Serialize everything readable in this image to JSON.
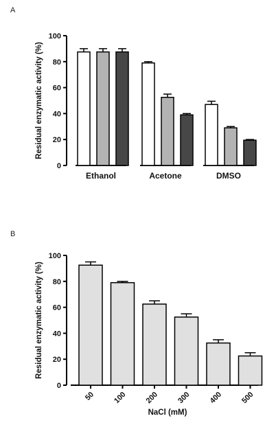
{
  "chart_data": [
    {
      "panel_label": "A",
      "type": "bar",
      "categories": [
        "Ethanol",
        "Acetone",
        "DMSO"
      ],
      "series": [
        {
          "values": [
            87.5,
            79,
            47
          ],
          "errors": [
            2.5,
            1,
            2.5
          ],
          "color": "#ffffff"
        },
        {
          "values": [
            87.5,
            52.5,
            29
          ],
          "errors": [
            2.5,
            2.5,
            1
          ],
          "color": "#b3b3b3"
        },
        {
          "values": [
            87.5,
            39,
            19.5
          ],
          "errors": [
            2.5,
            1,
            0.5
          ],
          "color": "#474747"
        }
      ],
      "ylabel": "Residual enzymatic activity (%)",
      "xlabel": "",
      "ylim": [
        0,
        100
      ],
      "yticks": [
        "0",
        "20",
        "40",
        "60",
        "80",
        "100"
      ],
      "grid": false
    },
    {
      "panel_label": "B",
      "type": "bar",
      "categories": [
        "50",
        "100",
        "200",
        "300",
        "400",
        "500"
      ],
      "series": [
        {
          "values": [
            92.5,
            79,
            62.5,
            52.5,
            32.5,
            22.5
          ],
          "errors": [
            2.5,
            1,
            2.5,
            2.5,
            2.5,
            2.5
          ],
          "color": "#e0e0e0"
        }
      ],
      "ylabel": "Residual enzymatic activity (%)",
      "xlabel": "NaCl (mM)",
      "ylim": [
        0,
        100
      ],
      "yticks": [
        "0",
        "20",
        "40",
        "60",
        "80",
        "100"
      ],
      "grid": false
    }
  ]
}
